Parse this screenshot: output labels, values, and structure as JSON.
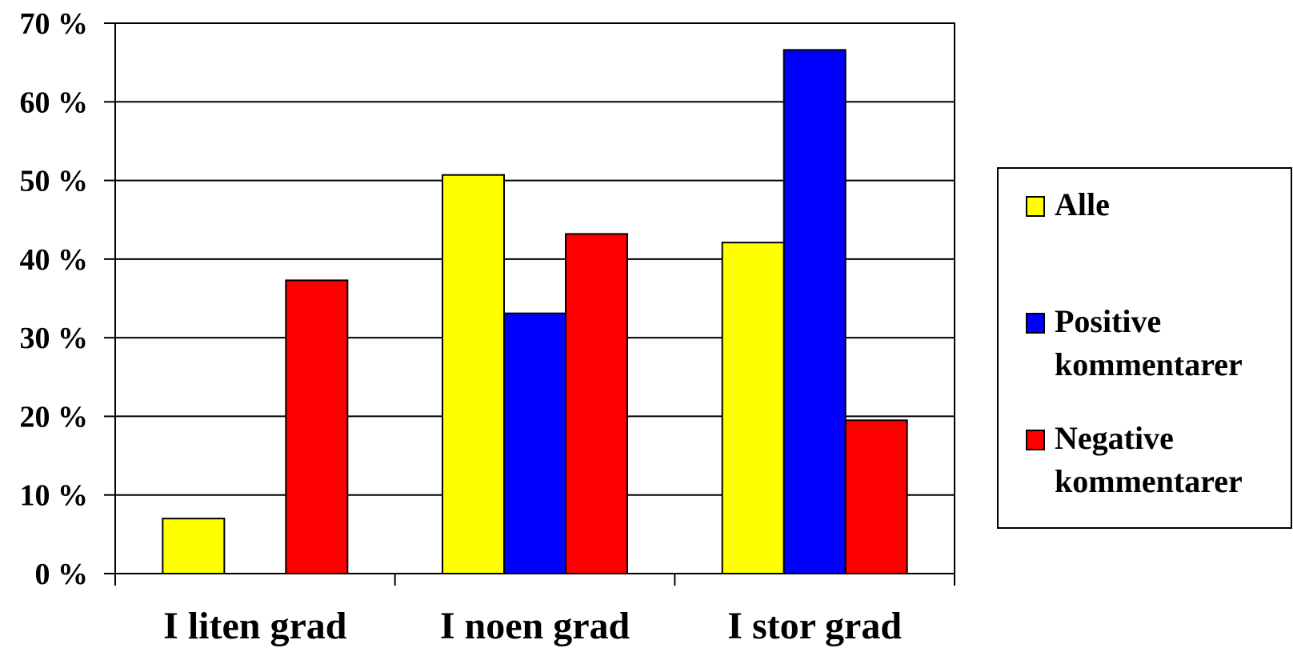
{
  "chart_data": {
    "type": "bar",
    "categories": [
      "I liten grad",
      "I noen grad",
      "I stor grad"
    ],
    "series": [
      {
        "name": "Alle",
        "color": "#FFFF00",
        "values": [
          7.0,
          50.7,
          42.1
        ]
      },
      {
        "name": "Positive kommentarer",
        "color": "#0000FF",
        "values": [
          0,
          33.1,
          66.6
        ]
      },
      {
        "name": "Negative kommentarer",
        "color": "#FF0000",
        "values": [
          37.3,
          43.2,
          19.5
        ]
      }
    ],
    "ylim": [
      0,
      70
    ],
    "yticks": [
      "0 %",
      "10 %",
      "20 %",
      "30 %",
      "40 %",
      "50 %",
      "60 %",
      "70 %"
    ],
    "grid": true,
    "legend_position": "right"
  },
  "legend": {
    "items": [
      {
        "label": "Alle",
        "color": "#FFFF00"
      },
      {
        "label": "Positive kommentarer",
        "color": "#0000FF"
      },
      {
        "label": "Negative kommentarer",
        "color": "#FF0000"
      }
    ]
  }
}
